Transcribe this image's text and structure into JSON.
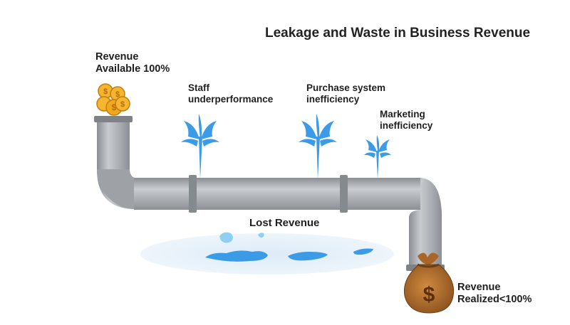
{
  "title": "Leakage and Waste in Business Revenue",
  "labels": {
    "available": [
      "Revenue",
      "Available 100%"
    ],
    "staff": [
      "Staff",
      "underperformance"
    ],
    "purchase": [
      "Purchase system",
      "inefficiency"
    ],
    "marketing": [
      "Marketing",
      "inefficiency"
    ],
    "lost": "Lost Revenue",
    "realized": [
      "Revenue",
      "Realized<100%"
    ]
  },
  "icons": {
    "coins": "coin-stack-icon",
    "money_bag": "money-bag-icon",
    "dollar_symbol": "$"
  },
  "colors": {
    "pipe": "#a4a8ac",
    "pipe_dark": "#7d8186",
    "water": "#3c9be6",
    "puddle": "#e6f1fa",
    "coin": "#f0a91e",
    "bag": "#b5702d"
  }
}
